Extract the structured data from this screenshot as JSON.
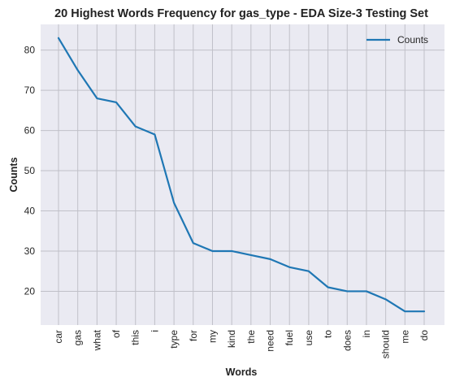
{
  "chart_data": {
    "type": "line",
    "title": "20 Highest Words Frequency for gas_type - EDA Size-3 Testing Set",
    "xlabel": "Words",
    "ylabel": "Counts",
    "categories": [
      "car",
      "gas",
      "what",
      "of",
      "this",
      "i",
      "type",
      "for",
      "my",
      "kind",
      "the",
      "need",
      "fuel",
      "use",
      "to",
      "does",
      "in",
      "should",
      "me",
      "do"
    ],
    "series": [
      {
        "name": "Counts",
        "values": [
          83,
          75,
          68,
          67,
          61,
          59,
          42,
          32,
          30,
          30,
          29,
          28,
          26,
          25,
          21,
          20,
          20,
          18,
          15,
          15
        ]
      }
    ],
    "ylim": [
      11.6,
      86.4
    ],
    "yticks": [
      20,
      30,
      40,
      50,
      60,
      70,
      80
    ],
    "grid": true,
    "legend": "top-right",
    "colors": {
      "line": "#1f77b4",
      "plot_bg": "#eaeaf2",
      "grid": "#c0c0c8"
    }
  }
}
